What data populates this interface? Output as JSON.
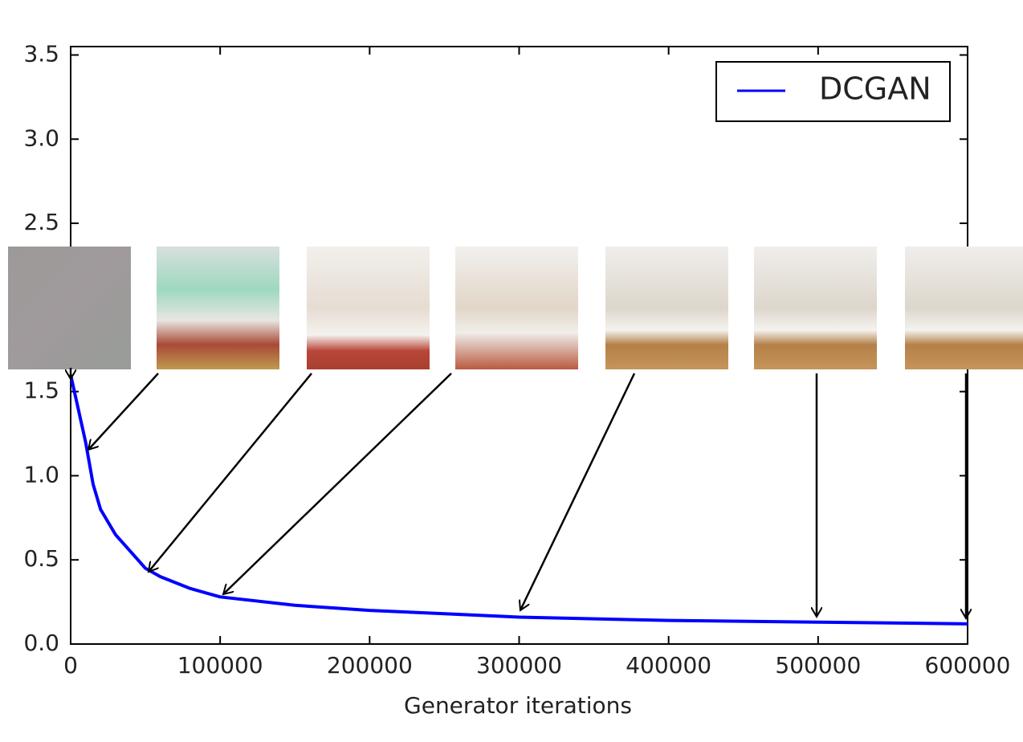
{
  "chart_data": {
    "type": "line",
    "xlabel": "Generator iterations",
    "x": [
      0,
      5000,
      10000,
      15000,
      20000,
      30000,
      40000,
      50000,
      60000,
      80000,
      100000,
      150000,
      200000,
      250000,
      300000,
      400000,
      500000,
      600000
    ],
    "series": [
      {
        "name": "DCGAN",
        "color": "#0000ff",
        "values": [
          1.6,
          1.4,
          1.2,
          0.95,
          0.8,
          0.65,
          0.55,
          0.45,
          0.4,
          0.33,
          0.28,
          0.23,
          0.2,
          0.18,
          0.16,
          0.14,
          0.13,
          0.12
        ]
      }
    ],
    "xlim": [
      0,
      600000
    ],
    "xticks": [
      0,
      100000,
      200000,
      300000,
      400000,
      500000,
      600000
    ],
    "ylim": [
      0,
      3.55
    ],
    "yticks": [
      {
        "value": 0,
        "label": "0.0"
      },
      0.5,
      {
        "value": 1,
        "label": "1.0"
      },
      1.5,
      {
        "value": 2,
        "label": "2.0"
      },
      2.5,
      {
        "value": 3,
        "label": "3.0"
      },
      3.5
    ],
    "legend": "upper right"
  }
}
